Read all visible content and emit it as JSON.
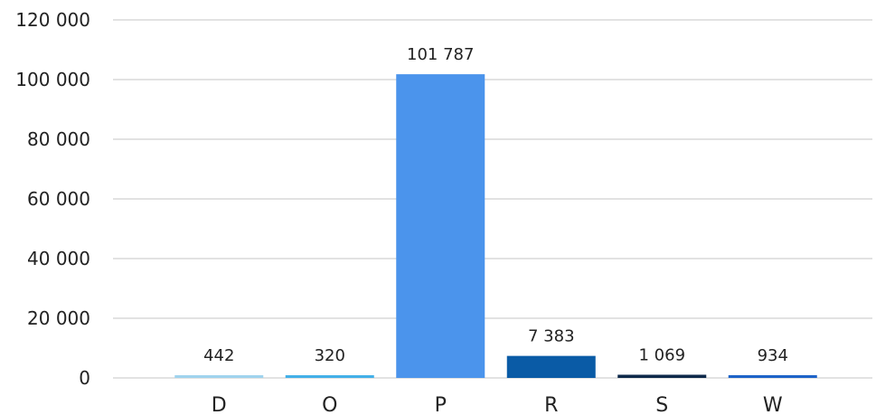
{
  "chart_data": {
    "type": "bar",
    "title": "",
    "xlabel": "",
    "ylabel": "",
    "categories": [
      "D",
      "O",
      "P",
      "R",
      "S",
      "W"
    ],
    "values": [
      442,
      320,
      101787,
      7383,
      1069,
      934
    ],
    "value_labels": [
      "442",
      "320",
      "101 787",
      "7 383",
      "1 069",
      "934"
    ],
    "colors": [
      "#9fd3ee",
      "#43b0e8",
      "#4b94ec",
      "#0a5ba6",
      "#0f2a4a",
      "#1e63c8"
    ],
    "ylim": [
      0,
      120000
    ],
    "yticks": [
      0,
      20000,
      40000,
      60000,
      80000,
      100000,
      120000
    ],
    "ytick_labels": [
      "0",
      "20 000",
      "40 000",
      "60 000",
      "80 000",
      "100 000",
      "120 000"
    ],
    "grid": true,
    "legend": false
  }
}
